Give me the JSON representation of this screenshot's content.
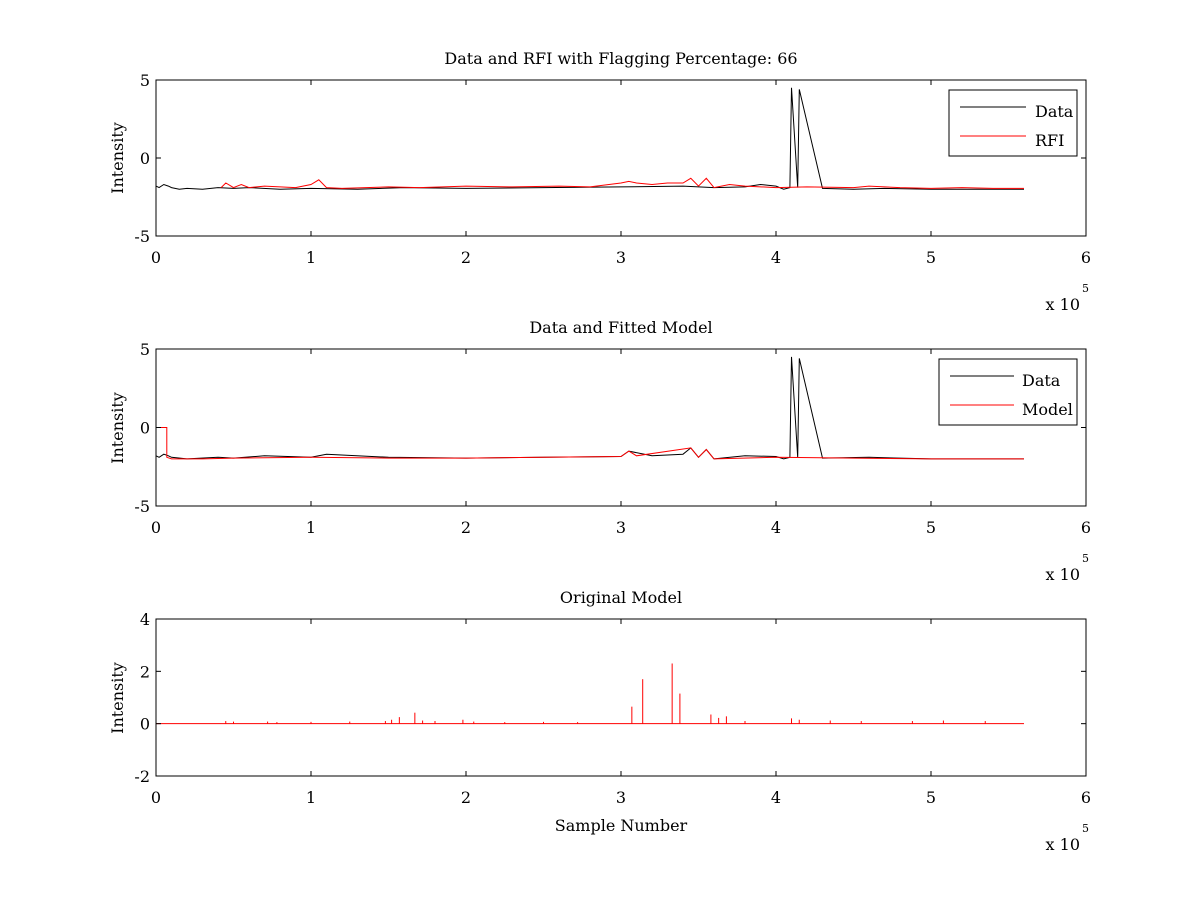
{
  "chart_data": [
    {
      "type": "line",
      "title": "Data and RFI with Flagging Percentage: 66",
      "xlabel": "",
      "ylabel": "Intensity",
      "xlim": [
        0,
        6
      ],
      "ylim": [
        -5,
        5
      ],
      "xticks": [
        "0",
        "1",
        "2",
        "3",
        "4",
        "5",
        "6"
      ],
      "yticks": [
        "-5",
        "0",
        "5"
      ],
      "x_multiplier": {
        "base": "x 10",
        "exponent": "5"
      },
      "legend": {
        "placement": "top-right"
      },
      "series": [
        {
          "name": "Data",
          "color": "#000000",
          "x": [
            0.0,
            0.02,
            0.05,
            0.08,
            0.1,
            0.15,
            0.2,
            0.3,
            0.4,
            0.5,
            0.6,
            0.8,
            1.0,
            1.3,
            1.6,
            2.0,
            2.5,
            3.0,
            3.4,
            3.6,
            3.8,
            3.9,
            4.0,
            4.05,
            4.09,
            4.1,
            4.14,
            4.15,
            4.3,
            4.5,
            4.7,
            5.0,
            5.3,
            5.5,
            5.6
          ],
          "y": [
            -1.8,
            -1.9,
            -1.7,
            -1.8,
            -1.9,
            -2.0,
            -1.95,
            -2.0,
            -1.9,
            -1.95,
            -1.9,
            -2.0,
            -1.95,
            -2.0,
            -1.9,
            -1.95,
            -1.9,
            -1.85,
            -1.8,
            -1.9,
            -1.85,
            -1.7,
            -1.8,
            -2.0,
            -1.9,
            4.5,
            -1.9,
            4.4,
            -1.95,
            -2.0,
            -1.95,
            -2.0,
            -2.0,
            -2.0,
            -2.0
          ]
        },
        {
          "name": "RFI",
          "color": "#ff0000",
          "x": [
            0.42,
            0.45,
            0.5,
            0.55,
            0.6,
            0.7,
            0.8,
            0.9,
            1.0,
            1.05,
            1.1,
            1.2,
            1.5,
            1.7,
            2.0,
            2.3,
            2.6,
            2.8,
            3.0,
            3.05,
            3.1,
            3.2,
            3.3,
            3.4,
            3.45,
            3.5,
            3.55,
            3.6,
            3.7,
            3.8,
            4.0,
            4.2,
            4.5,
            4.6,
            4.8,
            5.0,
            5.2,
            5.4,
            5.6
          ],
          "y": [
            -1.9,
            -1.6,
            -1.9,
            -1.7,
            -1.9,
            -1.8,
            -1.85,
            -1.9,
            -1.7,
            -1.4,
            -1.9,
            -1.95,
            -1.85,
            -1.9,
            -1.8,
            -1.85,
            -1.8,
            -1.85,
            -1.6,
            -1.5,
            -1.6,
            -1.7,
            -1.6,
            -1.6,
            -1.3,
            -1.8,
            -1.3,
            -1.9,
            -1.7,
            -1.8,
            -1.9,
            -1.85,
            -1.9,
            -1.8,
            -1.9,
            -1.95,
            -1.9,
            -1.95,
            -1.95
          ]
        }
      ]
    },
    {
      "type": "line",
      "title": "Data and Fitted Model",
      "xlabel": "",
      "ylabel": "Intensity",
      "xlim": [
        0,
        6
      ],
      "ylim": [
        -5,
        5
      ],
      "xticks": [
        "0",
        "1",
        "2",
        "3",
        "4",
        "5",
        "6"
      ],
      "yticks": [
        "-5",
        "0",
        "5"
      ],
      "x_multiplier": {
        "base": "x 10",
        "exponent": "5"
      },
      "legend": {
        "placement": "top-right"
      },
      "series": [
        {
          "name": "Data",
          "color": "#000000",
          "x": [
            0.0,
            0.02,
            0.05,
            0.08,
            0.1,
            0.2,
            0.4,
            0.5,
            0.7,
            1.0,
            1.1,
            1.5,
            2.0,
            2.5,
            3.0,
            3.05,
            3.2,
            3.4,
            3.45,
            3.5,
            3.55,
            3.6,
            3.8,
            4.0,
            4.05,
            4.09,
            4.1,
            4.14,
            4.15,
            4.3,
            4.6,
            5.0,
            5.3,
            5.6
          ],
          "y": [
            -1.8,
            -1.9,
            -1.7,
            -1.8,
            -1.9,
            -2.0,
            -1.9,
            -1.95,
            -1.8,
            -1.9,
            -1.7,
            -1.9,
            -1.95,
            -1.9,
            -1.85,
            -1.5,
            -1.8,
            -1.7,
            -1.3,
            -1.9,
            -1.4,
            -2.0,
            -1.8,
            -1.85,
            -2.0,
            -1.9,
            4.5,
            -1.9,
            4.4,
            -1.95,
            -1.9,
            -2.0,
            -2.0,
            -2.0
          ]
        },
        {
          "name": "Model",
          "color": "#ff0000",
          "x": [
            0.0,
            0.07,
            0.07,
            0.1,
            0.3,
            0.5,
            1.0,
            1.5,
            2.0,
            2.5,
            3.0,
            3.05,
            3.1,
            3.45,
            3.5,
            3.55,
            3.6,
            4.0,
            4.5,
            5.0,
            5.6
          ],
          "y": [
            0.0,
            0.0,
            -1.9,
            -2.0,
            -2.0,
            -1.95,
            -1.9,
            -1.95,
            -1.95,
            -1.9,
            -1.85,
            -1.5,
            -1.8,
            -1.3,
            -1.9,
            -1.4,
            -2.0,
            -1.9,
            -1.95,
            -2.0,
            -2.0
          ]
        }
      ]
    },
    {
      "type": "line",
      "title": "Original Model",
      "xlabel": "Sample Number",
      "ylabel": "Intensity",
      "xlim": [
        0,
        6
      ],
      "ylim": [
        -2,
        4
      ],
      "xticks": [
        "0",
        "1",
        "2",
        "3",
        "4",
        "5",
        "6"
      ],
      "yticks": [
        "-2",
        "0",
        "2",
        "4"
      ],
      "x_multiplier": {
        "base": "x 10",
        "exponent": "5"
      },
      "series": [
        {
          "name": "",
          "color": "#ff0000",
          "baseline": [
            0,
            5.6
          ],
          "spikes": [
            [
              0.45,
              0.1
            ],
            [
              0.5,
              0.08
            ],
            [
              0.72,
              0.08
            ],
            [
              0.78,
              0.06
            ],
            [
              1.0,
              0.07
            ],
            [
              1.25,
              0.08
            ],
            [
              1.48,
              0.1
            ],
            [
              1.52,
              0.15
            ],
            [
              1.57,
              0.25
            ],
            [
              1.67,
              0.42
            ],
            [
              1.72,
              0.12
            ],
            [
              1.8,
              0.1
            ],
            [
              1.98,
              0.15
            ],
            [
              2.05,
              0.08
            ],
            [
              2.25,
              0.06
            ],
            [
              2.5,
              0.07
            ],
            [
              2.72,
              0.06
            ],
            [
              3.07,
              0.65
            ],
            [
              3.14,
              1.7
            ],
            [
              3.33,
              2.3
            ],
            [
              3.38,
              1.15
            ],
            [
              3.58,
              0.35
            ],
            [
              3.63,
              0.22
            ],
            [
              3.68,
              0.28
            ],
            [
              3.8,
              0.1
            ],
            [
              4.1,
              0.2
            ],
            [
              4.15,
              0.15
            ],
            [
              4.35,
              0.12
            ],
            [
              4.55,
              0.1
            ],
            [
              4.88,
              0.1
            ],
            [
              5.08,
              0.12
            ],
            [
              5.35,
              0.1
            ]
          ]
        }
      ]
    }
  ]
}
